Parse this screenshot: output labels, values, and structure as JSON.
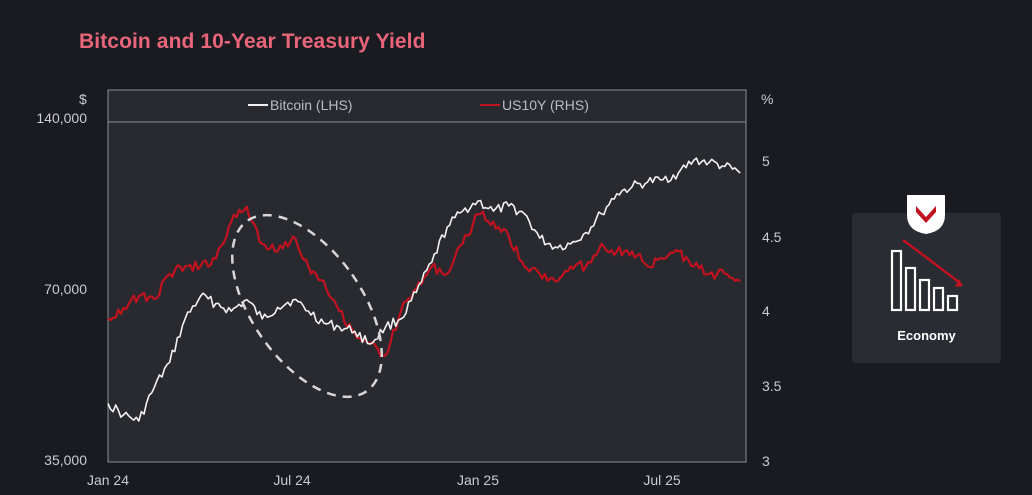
{
  "title": "Bitcoin and 10-Year Treasury Yield",
  "badge": {
    "label": "Economy"
  },
  "colors": {
    "bitcoin": "#f2f2f2",
    "us10y": "#c1121f",
    "title": "#e8657a",
    "badge_accent": "#c1121f"
  },
  "chart_data": {
    "type": "line",
    "title": "Bitcoin and 10-Year Treasury Yield",
    "x_tick_labels": [
      "Jan 24",
      "Jul 24",
      "Jan 25",
      "Jul 25"
    ],
    "x_ticks": [
      "2024-01",
      "2024-07",
      "2025-01",
      "2025-07"
    ],
    "left_axis": {
      "unit": "$",
      "scale": "log",
      "range": [
        35000,
        140000
      ],
      "ticks": [
        35000,
        70000,
        140000
      ],
      "tick_labels": [
        "35,000",
        "70,000",
        "140,000"
      ]
    },
    "right_axis": {
      "unit": "%",
      "range": [
        3,
        5.25
      ],
      "ticks": [
        3,
        3.5,
        4,
        4.5,
        5
      ],
      "tick_labels": [
        "3",
        "3.5",
        "4",
        "4.5",
        "5"
      ]
    },
    "legend": [
      "Bitcoin (LHS)",
      "US10Y (RHS)"
    ],
    "x_months": [
      0,
      0.5,
      1,
      1.5,
      2,
      2.5,
      3,
      3.5,
      4,
      4.5,
      5,
      5.5,
      6,
      6.5,
      7,
      7.5,
      8,
      8.5,
      9,
      9.5,
      10,
      10.5,
      11,
      11.5,
      12,
      12.5,
      13,
      13.5,
      14,
      14.5,
      15,
      15.5,
      16,
      16.5,
      17,
      17.5,
      18,
      18.5,
      19,
      19.5,
      20,
      20.5
    ],
    "series": [
      {
        "name": "Bitcoin (LHS)",
        "axis": "left",
        "values": [
          44000,
          42000,
          41000,
          47000,
          52000,
          62000,
          68000,
          66000,
          64000,
          67000,
          62000,
          65000,
          67000,
          64000,
          61000,
          60000,
          59000,
          56000,
          60000,
          62000,
          69000,
          78000,
          90000,
          96000,
          100000,
          96000,
          98000,
          95000,
          86000,
          83000,
          84000,
          88000,
          95000,
          103000,
          106000,
          108000,
          109000,
          112000,
          118000,
          117000,
          115000,
          112000
        ]
      },
      {
        "name": "US10Y (RHS)",
        "axis": "right",
        "values": [
          3.95,
          4.02,
          4.1,
          4.08,
          4.25,
          4.3,
          4.3,
          4.35,
          4.6,
          4.7,
          4.45,
          4.4,
          4.5,
          4.3,
          4.2,
          4.0,
          3.85,
          3.78,
          3.7,
          4.0,
          4.15,
          4.3,
          4.25,
          4.45,
          4.65,
          4.6,
          4.5,
          4.3,
          4.25,
          4.2,
          4.3,
          4.3,
          4.45,
          4.4,
          4.4,
          4.3,
          4.35,
          4.4,
          4.3,
          4.25,
          4.25,
          4.2
        ]
      }
    ],
    "annotation": "dashed ellipse highlighting mid-2024 period"
  }
}
